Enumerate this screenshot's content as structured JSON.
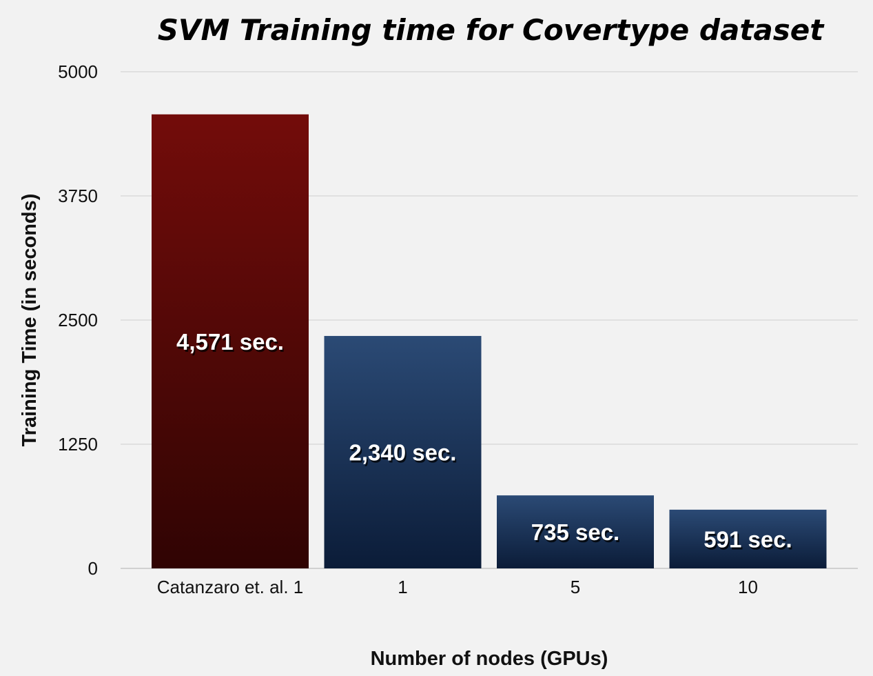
{
  "chart_data": {
    "type": "bar",
    "title": "SVM Training time for Covertype dataset",
    "xlabel": "Number of nodes (GPUs)",
    "ylabel": "Training Time (in seconds)",
    "categories": [
      "Catanzaro et. al. 1",
      "1",
      "5",
      "10"
    ],
    "values": [
      4571,
      2340,
      735,
      591
    ],
    "data_labels": [
      "4,571 sec.",
      "2,340 sec.",
      "735 sec.",
      "591 sec."
    ],
    "bar_colors": [
      "#7a0c0b",
      "#2a4a76",
      "#2a4a76",
      "#2a4a76"
    ],
    "yticks": [
      0,
      1250,
      2500,
      3750,
      5000
    ],
    "ylim": [
      0,
      5000
    ],
    "grid": true,
    "legend": "none"
  }
}
